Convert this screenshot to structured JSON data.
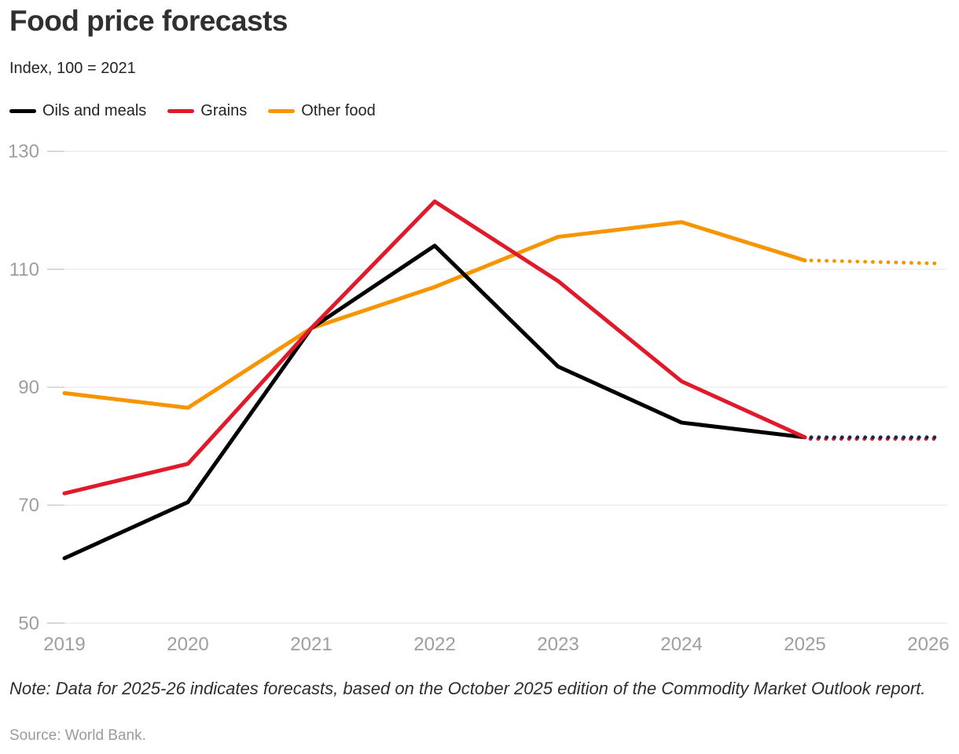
{
  "header": {
    "title": "Food price forecasts",
    "subtitle": "Index, 100 = 2021"
  },
  "legend": [
    {
      "label": "Oils and meals",
      "color": "#000000"
    },
    {
      "label": "Grains",
      "color": "#e11a2b"
    },
    {
      "label": "Other food",
      "color": "#f79500"
    }
  ],
  "chart_data": {
    "type": "line",
    "title": "Food price forecasts",
    "ylabel": "Index, 100 = 2021",
    "xlabel": "",
    "x": [
      2019,
      2020,
      2021,
      2022,
      2023,
      2024,
      2025,
      2026
    ],
    "series": [
      {
        "name": "Oils and meals",
        "color": "#000000",
        "forecast_color": "#16294d",
        "values": [
          61,
          70.5,
          100,
          114,
          93.5,
          84,
          81.5,
          81.5
        ]
      },
      {
        "name": "Grains",
        "color": "#e11a2b",
        "forecast_color": "#e11a2b",
        "values": [
          72,
          77,
          100,
          121.5,
          108,
          91,
          81.5,
          81.5
        ]
      },
      {
        "name": "Other food",
        "color": "#f79500",
        "forecast_color": "#f79500",
        "values": [
          89,
          86.5,
          100,
          107,
          115.5,
          118,
          111.5,
          111
        ]
      }
    ],
    "forecast_from_index": 6,
    "forecast_style": "dotted",
    "y_ticks": [
      130,
      110,
      90,
      70,
      50
    ],
    "ylim": [
      50,
      130
    ],
    "grid": true,
    "legend_position": "top"
  },
  "note": "Note: Data for 2025-26 indicates forecasts, based on the October 2025 edition of the Commodity Market Outlook report.",
  "source": "Source: World Bank."
}
